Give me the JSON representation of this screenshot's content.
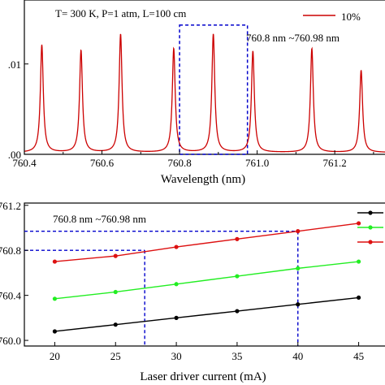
{
  "chart_data": [
    {
      "type": "line",
      "xlabel": "Wavelength (nm)",
      "ylabel": "",
      "xlim": [
        760.4,
        761.34
      ],
      "ylim": [
        0.0,
        0.016
      ],
      "x_ticks": [
        "760.4",
        "760.6",
        "760.8",
        "761.0",
        "761.2"
      ],
      "x_tick_values": [
        760.4,
        760.6,
        760.8,
        761.0,
        761.2
      ],
      "y_ticks": [
        ".00",
        ".01"
      ],
      "y_tick_values": [
        0.0,
        0.01
      ],
      "annotations": [
        {
          "text": "T= 300 K, P=1 atm, L=100 cm"
        },
        {
          "text": "760.8 nm ~760.98 nm",
          "box_x": [
            760.8,
            760.975
          ],
          "box_y": [
            0.0,
            0.0143
          ]
        }
      ],
      "legend": {
        "placement": "top-right",
        "entries": [
          {
            "name": "10% ",
            "color": "#cc0000"
          }
        ]
      },
      "series": [
        {
          "name": "10% ",
          "color": "#cc0000",
          "baseline": 0.0002,
          "peak_width": 0.0045,
          "peaks": [
            {
              "x": 760.445,
              "y": 0.0121
            },
            {
              "x": 760.546,
              "y": 0.0115
            },
            {
              "x": 760.648,
              "y": 0.0133
            },
            {
              "x": 760.785,
              "y": 0.0117
            },
            {
              "x": 760.887,
              "y": 0.0133
            },
            {
              "x": 760.989,
              "y": 0.0114
            },
            {
              "x": 761.141,
              "y": 0.0117
            },
            {
              "x": 761.268,
              "y": 0.0093
            }
          ]
        }
      ],
      "grid": false
    },
    {
      "type": "line",
      "xlabel": "Laser driver current (mA)",
      "ylabel": "",
      "xlim": [
        17.5,
        47.5
      ],
      "ylim": [
        759.95,
        761.22
      ],
      "x_ticks": [
        "20",
        "25",
        "30",
        "35",
        "40",
        "45"
      ],
      "x_tick_values": [
        20,
        25,
        30,
        35,
        40,
        45
      ],
      "y_ticks": [
        "760.0",
        "760.4",
        "760.8",
        "761.2"
      ],
      "y_tick_values": [
        760.0,
        760.4,
        760.8,
        761.2
      ],
      "annotations": [
        {
          "text": "760.8 nm ~760.98 nm"
        },
        {
          "type": "guide",
          "x": 27.4,
          "y": 760.8
        },
        {
          "type": "guide",
          "x": 40.0,
          "y": 760.97
        }
      ],
      "legend": {
        "placement": "top-right",
        "entries": [
          {
            "name": "",
            "color": "#000000"
          },
          {
            "name": "",
            "color": "#22ee22"
          },
          {
            "name": "",
            "color": "#dd1111"
          }
        ]
      },
      "x": [
        20,
        25,
        30,
        35,
        40,
        45
      ],
      "series": [
        {
          "name": "",
          "color": "#000000",
          "values": [
            760.08,
            760.14,
            760.2,
            760.26,
            760.32,
            760.38
          ]
        },
        {
          "name": "",
          "color": "#22ee22",
          "values": [
            760.37,
            760.43,
            760.5,
            760.57,
            760.64,
            760.7
          ]
        },
        {
          "name": "",
          "color": "#dd1111",
          "values": [
            760.7,
            760.75,
            760.83,
            760.9,
            760.97,
            761.04
          ]
        }
      ],
      "grid": false
    }
  ]
}
